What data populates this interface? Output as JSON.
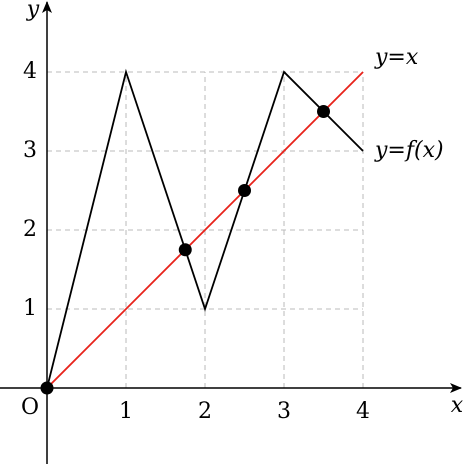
{
  "chart_data": {
    "type": "line",
    "x_label": "x",
    "y_label": "y",
    "origin_label": "O",
    "xlim": [
      -0.595,
      5.291
    ],
    "ylim": [
      -0.962,
      4.911
    ],
    "xticks": [
      1,
      2,
      3,
      4
    ],
    "yticks": [
      1,
      2,
      3,
      4
    ],
    "grid": true,
    "series": [
      {
        "name": "y=f(x)",
        "color": "#000000",
        "x": [
          0,
          1,
          2,
          3,
          4
        ],
        "values": [
          0,
          4,
          1,
          4,
          3
        ]
      },
      {
        "name": "y=x",
        "color": "#e8231b",
        "x": [
          0,
          4
        ],
        "values": [
          0,
          4
        ]
      }
    ],
    "points": {
      "color": "#000000",
      "x": [
        0,
        1.75,
        2.5,
        3.5
      ],
      "values": [
        0,
        1.75,
        2.5,
        3.5
      ]
    }
  }
}
